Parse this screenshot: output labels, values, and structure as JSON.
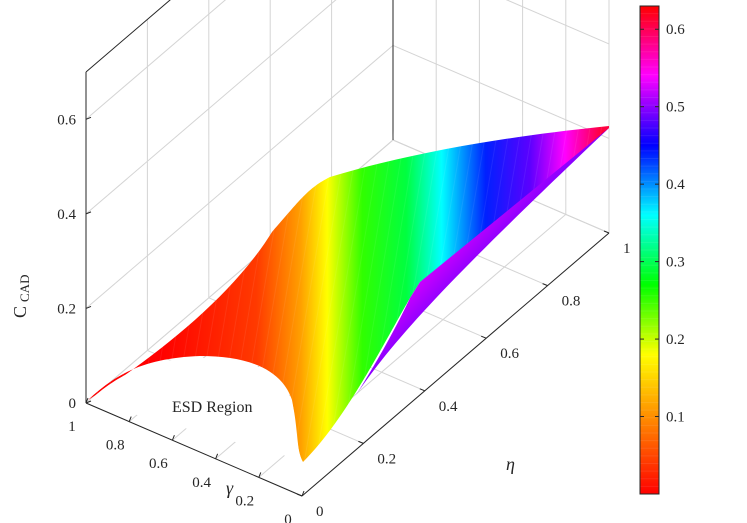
{
  "chart_data": {
    "type": "surface",
    "z_label": "C",
    "z_label_sub": "CAD",
    "x_label": "γ",
    "y_label": "η",
    "x_ticks": [
      "1",
      "0.8",
      "0.6",
      "0.4",
      "0.2",
      "0"
    ],
    "y_ticks": [
      "0",
      "0.2",
      "0.4",
      "0.6",
      "0.8",
      "1"
    ],
    "z_ticks": [
      "0",
      "0.2",
      "0.4",
      "0.6"
    ],
    "x_range": [
      0,
      1
    ],
    "y_range": [
      0,
      1
    ],
    "z_range": [
      0,
      0.7
    ],
    "annotation": "ESD Region",
    "annotation_color": "#1f1fd6",
    "colorbar": {
      "ticks": [
        "0.1",
        "0.2",
        "0.3",
        "0.4",
        "0.5",
        "0.6"
      ],
      "range": [
        0,
        0.63
      ],
      "colormap": [
        "#ff0000",
        "#ff8000",
        "#ffff00",
        "#00ff00",
        "#00ffff",
        "#0000ff",
        "#ff00ff",
        "#ff0000"
      ]
    },
    "grid": true,
    "box": true
  }
}
